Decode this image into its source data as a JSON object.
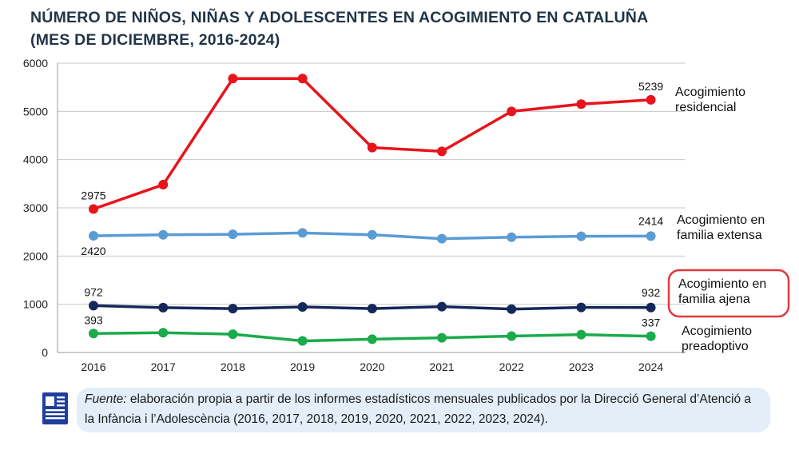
{
  "title": {
    "line1": "NÚMERO DE NIÑOS, NIÑAS Y ADOLESCENTES EN ACOGIMIENTO EN CATALUÑA",
    "line2": "(MES DE DICIEMBRE, 2016-2024)"
  },
  "chart_data": {
    "type": "line",
    "title": "NÚMERO DE NIÑOS, NIÑAS Y ADOLESCENTES EN ACOGIMIENTO EN CATALUÑA (MES DE DICIEMBRE, 2016-2024)",
    "xlabel": "",
    "ylabel": "",
    "x": [
      "2016",
      "2017",
      "2018",
      "2019",
      "2020",
      "2021",
      "2022",
      "2023",
      "2024"
    ],
    "ylim": [
      0,
      6000
    ],
    "yticks": [
      "0",
      "1000",
      "2000",
      "3000",
      "4000",
      "5000",
      "6000"
    ],
    "grid": true,
    "series": [
      {
        "name": "Acogimiento residencial",
        "legend_lines": [
          "Acogimiento",
          "residencial"
        ],
        "color": "#e8141b",
        "values": [
          2975,
          3480,
          5680,
          5680,
          4250,
          4170,
          5000,
          5150,
          5239
        ],
        "labels": {
          "first": "2975",
          "last": "5239"
        }
      },
      {
        "name": "Acogimiento en familia extensa",
        "legend_lines": [
          "Acogimiento en",
          "familia extensa"
        ],
        "color": "#5b9bd5",
        "values": [
          2420,
          2440,
          2450,
          2480,
          2440,
          2360,
          2390,
          2410,
          2414
        ],
        "labels": {
          "first": "2420",
          "last": "2414"
        }
      },
      {
        "name": "Acogimiento en familia ajena",
        "legend_lines": [
          "Acogimiento en",
          "familia ajena"
        ],
        "color": "#14285a",
        "highlight_color": "#e03a3e",
        "values": [
          972,
          930,
          910,
          945,
          910,
          950,
          900,
          935,
          932
        ],
        "labels": {
          "first": "972",
          "last": "932"
        }
      },
      {
        "name": "Acogimiento preadoptivo",
        "legend_lines": [
          "Acogimiento",
          "preadoptivo"
        ],
        "color": "#1aab4b",
        "values": [
          393,
          410,
          380,
          240,
          275,
          305,
          340,
          370,
          337
        ],
        "labels": {
          "first": "393",
          "last": "337"
        }
      }
    ]
  },
  "source": {
    "label": "Fuente:",
    "text": " elaboración propia a partir de los informes estadísticos mensuales publicados por la Direcció General d’Atenció a la Infància i l’Adolescència (2016, 2017, 2018, 2019, 2020, 2021, 2022, 2023, 2024).",
    "icon": "document-icon",
    "box_color": "#e3eef9",
    "icon_color": "#1f3f9e"
  },
  "colors": {
    "title": "#223447",
    "grid": "#c8c8c8"
  }
}
